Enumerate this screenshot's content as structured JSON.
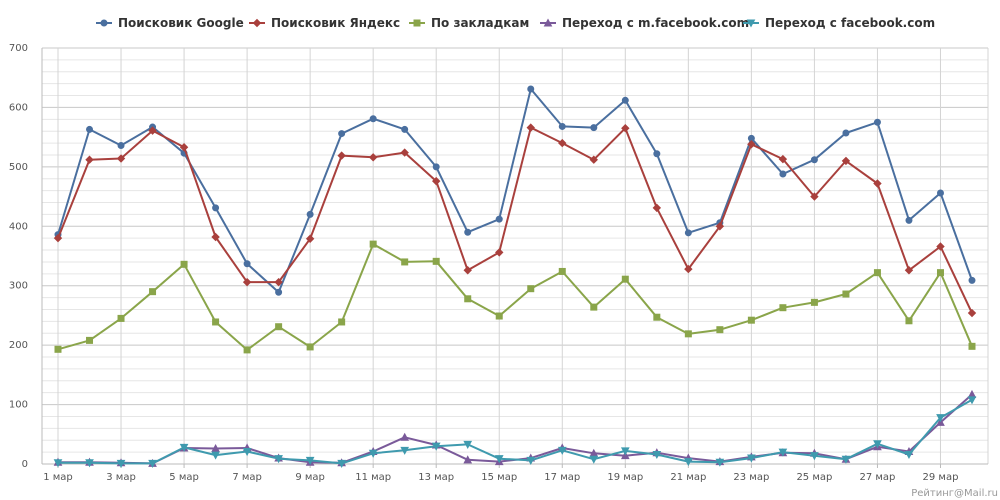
{
  "chart_data": {
    "type": "line",
    "title": "",
    "xlabel": "",
    "ylabel": "",
    "ylim": [
      0,
      700
    ],
    "y_ticks": [
      0,
      100,
      200,
      300,
      400,
      500,
      600,
      700
    ],
    "grid": true,
    "legend_position": "top",
    "x": [
      "1 мар",
      "2 мар",
      "3 мар",
      "4 мар",
      "5 мар",
      "6 мар",
      "7 мар",
      "8 мар",
      "9 мар",
      "10 мар",
      "11 мар",
      "12 мар",
      "13 мар",
      "14 мар",
      "15 мар",
      "16 мар",
      "17 мар",
      "18 мар",
      "19 мар",
      "20 мар",
      "21 мар",
      "22 мар",
      "23 мар",
      "24 мар",
      "25 мар",
      "26 мар",
      "27 мар",
      "28 мар",
      "29 мар",
      "30 мар"
    ],
    "x_tick_labels": [
      "1 мар",
      "3 мар",
      "5 мар",
      "7 мар",
      "9 мар",
      "11 мар",
      "13 мар",
      "15 мар",
      "17 мар",
      "19 мар",
      "21 мар",
      "23 мар",
      "25 мар",
      "27 мар",
      "29 мар"
    ],
    "series": [
      {
        "name": "Поисковик Google",
        "color": "#4a6f9f",
        "marker": "circle",
        "values": [
          386,
          563,
          536,
          567,
          523,
          431,
          337,
          289,
          420,
          556,
          581,
          563,
          500,
          390,
          412,
          631,
          568,
          566,
          612,
          522,
          389,
          406,
          548,
          488,
          512,
          557,
          575,
          410,
          456,
          309
        ]
      },
      {
        "name": "Поисковик Яндекс",
        "color": "#a9403d",
        "marker": "diamond",
        "values": [
          380,
          512,
          514,
          561,
          533,
          382,
          306,
          306,
          379,
          519,
          516,
          524,
          476,
          326,
          356,
          566,
          540,
          512,
          565,
          431,
          328,
          400,
          538,
          513,
          450,
          510,
          472,
          326,
          366,
          254
        ]
      },
      {
        "name": "По закладкам",
        "color": "#8aa54a",
        "marker": "square",
        "values": [
          193,
          208,
          245,
          290,
          336,
          239,
          192,
          231,
          197,
          239,
          370,
          340,
          341,
          278,
          249,
          295,
          324,
          264,
          311,
          247,
          219,
          226,
          242,
          263,
          272,
          286,
          322,
          241,
          322,
          198
        ]
      },
      {
        "name": "Переход с m.facebook.com",
        "color": "#7a5a9a",
        "marker": "triangle-up",
        "values": [
          3,
          3,
          2,
          1,
          27,
          26,
          27,
          10,
          3,
          2,
          21,
          45,
          32,
          7,
          4,
          10,
          27,
          18,
          14,
          19,
          10,
          4,
          12,
          19,
          18,
          8,
          29,
          21,
          70,
          117
        ]
      },
      {
        "name": "Переход с facebook.com",
        "color": "#3f9aae",
        "marker": "triangle-down",
        "values": [
          2,
          2,
          1,
          1,
          28,
          15,
          21,
          9,
          6,
          1,
          18,
          23,
          30,
          33,
          9,
          6,
          23,
          8,
          22,
          16,
          4,
          3,
          10,
          20,
          14,
          8,
          34,
          16,
          78,
          108
        ]
      }
    ]
  },
  "credit": "Рейтинг@Mail.ru"
}
